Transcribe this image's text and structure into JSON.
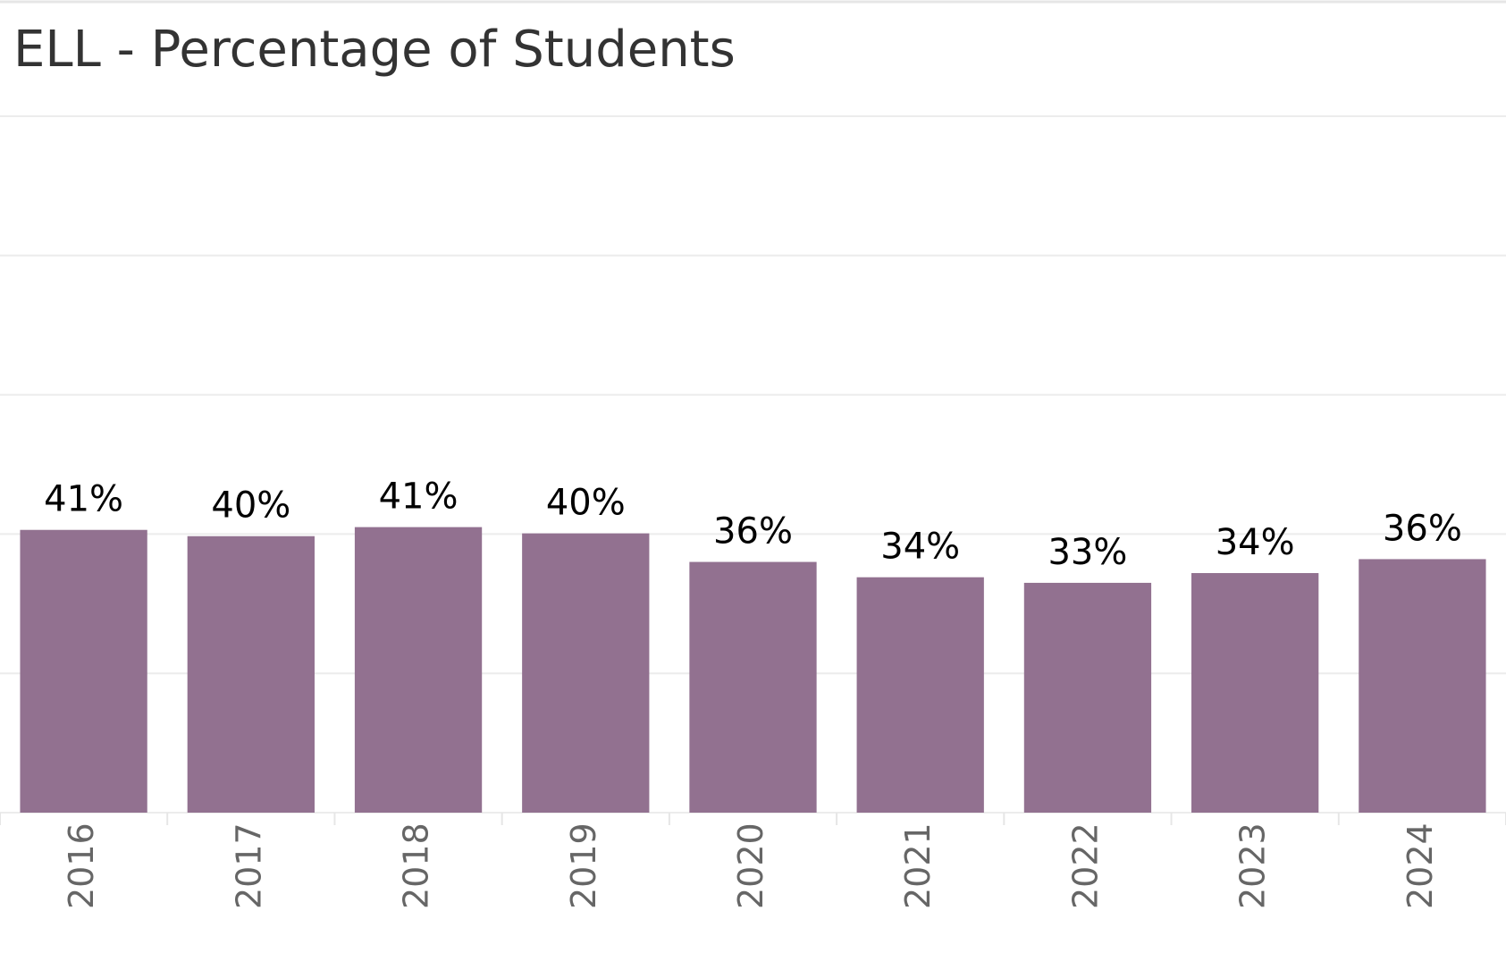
{
  "chart_data": {
    "type": "bar",
    "title": "ELL - Percentage of Students",
    "categories": [
      "2016",
      "2017",
      "2018",
      "2019",
      "2020",
      "2021",
      "2022",
      "2023",
      "2024"
    ],
    "values": [
      40.6,
      39.7,
      41.0,
      40.1,
      36.0,
      33.8,
      33.0,
      34.4,
      36.4
    ],
    "value_labels": [
      "41%",
      "40%",
      "41%",
      "40%",
      "36%",
      "34%",
      "33%",
      "34%",
      "36%"
    ],
    "color": "#927190",
    "ylim": [
      0,
      100
    ],
    "yticks": [
      0,
      20,
      40,
      60,
      80,
      100
    ],
    "grid": true
  }
}
